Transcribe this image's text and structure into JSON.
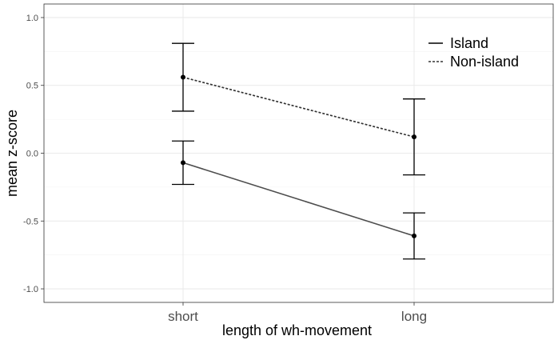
{
  "chart_data": {
    "type": "line",
    "title": "",
    "xlabel": "length of wh-movement",
    "ylabel": "mean z-score",
    "categories": [
      "short",
      "long"
    ],
    "ylim": [
      -1.1,
      1.1
    ],
    "yticks": [
      1.0,
      0.5,
      0.0,
      -0.5,
      -1.0
    ],
    "ytick_labels": [
      "1.0",
      "0.5",
      "0.0",
      "-0.5",
      "-1.0"
    ],
    "grid": true,
    "legend_position": "top-right",
    "series": [
      {
        "name": "Island",
        "linestyle": "solid",
        "color": "#4d4d4d",
        "values": [
          -0.07,
          -0.61
        ],
        "error_low": [
          -0.23,
          -0.78
        ],
        "error_high": [
          0.09,
          -0.44
        ]
      },
      {
        "name": "Non-island",
        "linestyle": "dotted",
        "color": "#333333",
        "values": [
          0.56,
          0.12
        ],
        "error_low": [
          0.31,
          -0.16
        ],
        "error_high": [
          0.81,
          0.4
        ]
      }
    ]
  }
}
